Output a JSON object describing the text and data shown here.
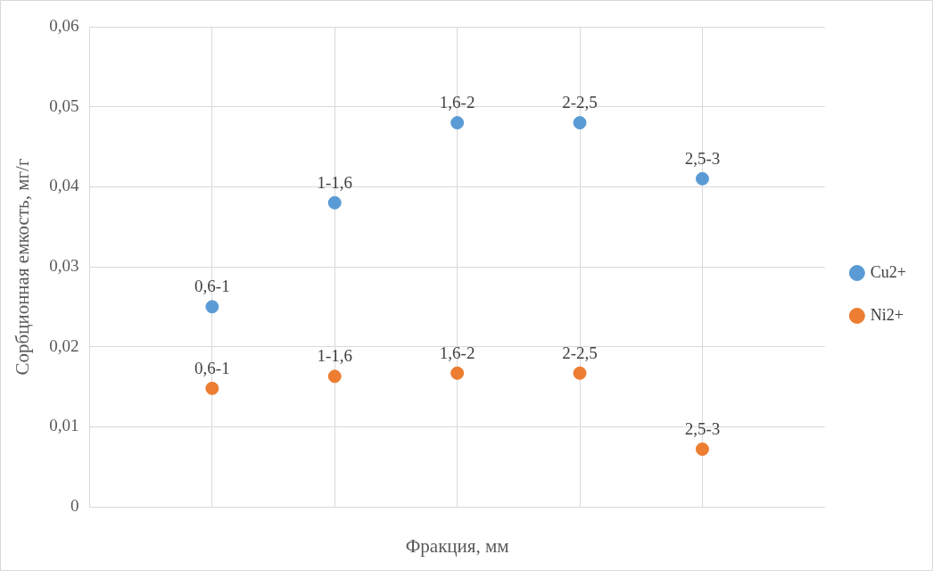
{
  "chart_data": {
    "type": "scatter",
    "xlabel": "Фракция, мм",
    "ylabel": "Сорбционная емкость, мг/г",
    "categories": [
      null,
      null,
      null,
      null,
      null
    ],
    "ylim": [
      0,
      0.06
    ],
    "yticks": [
      0,
      {
        "value": 0.01,
        "label": "0,01"
      },
      {
        "value": 0.02,
        "label": "0,02"
      },
      {
        "value": 0.03,
        "label": "0,03"
      },
      {
        "value": 0.04,
        "label": "0,04"
      },
      {
        "value": 0.05,
        "label": "0,05"
      },
      {
        "value": 0.06,
        "label": "0,06"
      }
    ],
    "series": [
      {
        "name": "Cu2+",
        "color": "#5b9bd5",
        "values": [
          0.025,
          0.038,
          0.048,
          0.048,
          0.041
        ],
        "value_labels": [
          "0,6-1",
          "1-1,6",
          "1,6-2",
          "2-2,5",
          "2,5-3"
        ]
      },
      {
        "name": "Ni2+",
        "color": "#ed7d31",
        "values": [
          0.0148,
          0.0163,
          0.0167,
          0.0167,
          0.0072
        ],
        "value_labels": [
          "0,6-1",
          "1-1,6",
          "1,6-2",
          "2-2,5",
          "2,5-3"
        ]
      }
    ],
    "grid": true,
    "legend": "right",
    "marker": "circle"
  }
}
